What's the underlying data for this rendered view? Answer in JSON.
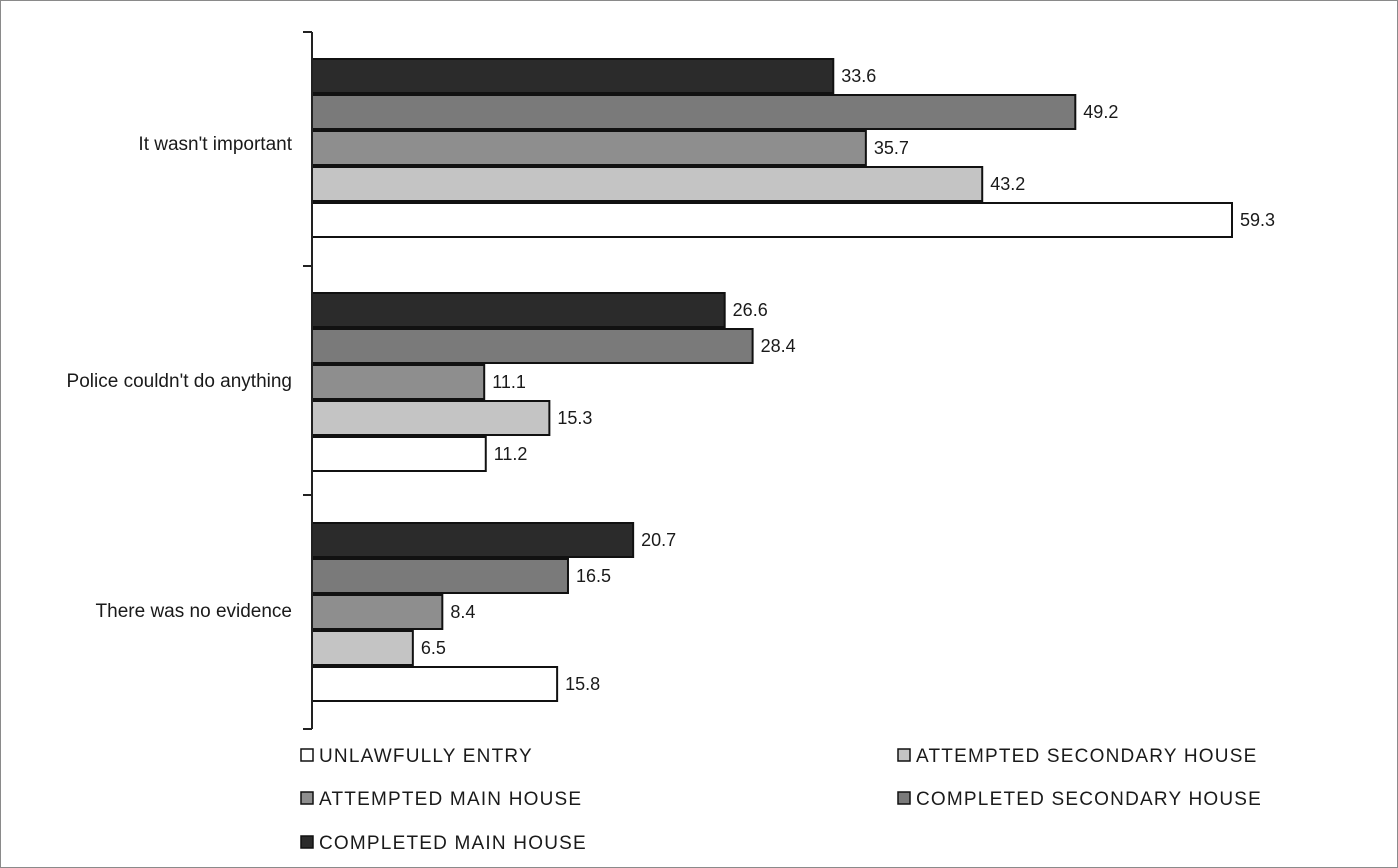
{
  "chart_data": {
    "type": "bar",
    "orientation": "horizontal",
    "categories": [
      "It wasn't important",
      "Police couldn't do anything",
      "There was no evidence"
    ],
    "series": [
      {
        "name": "COMPLETED MAIN HOUSE",
        "color": "#2b2b2b",
        "values": [
          33.6,
          26.6,
          20.7
        ]
      },
      {
        "name": "COMPLETED SECONDARY HOUSE",
        "color": "#7a7a7a",
        "values": [
          49.2,
          28.4,
          16.5
        ]
      },
      {
        "name": "ATTEMPTED MAIN HOUSE",
        "color": "#8e8e8e",
        "values": [
          35.7,
          11.1,
          8.4
        ]
      },
      {
        "name": "ATTEMPTED SECONDARY HOUSE",
        "color": "#c4c4c4",
        "values": [
          43.2,
          15.3,
          6.5
        ]
      },
      {
        "name": "UNLAWFULLY ENTRY",
        "color": "#ffffff",
        "values": [
          59.3,
          11.2,
          15.8
        ]
      }
    ],
    "value_labels": [
      [
        "33.6",
        "26.6",
        "20.7"
      ],
      [
        "49.2",
        "28.4",
        "16.5"
      ],
      [
        "35.7",
        "11.1",
        "8.4"
      ],
      [
        "43.2",
        "15.3",
        "6.5"
      ],
      [
        "59.3",
        "11.2",
        "15.8"
      ]
    ],
    "xlim": [
      0,
      60
    ],
    "grid": false,
    "legend_position": "bottom",
    "legend_order": [
      "UNLAWFULLY ENTRY",
      "ATTEMPTED SECONDARY HOUSE",
      "ATTEMPTED MAIN HOUSE",
      "COMPLETED SECONDARY HOUSE",
      "COMPLETED MAIN HOUSE"
    ]
  }
}
